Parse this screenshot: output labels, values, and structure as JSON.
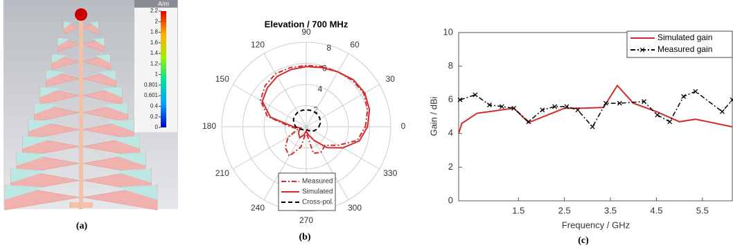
{
  "chart_data": [
    {
      "type": "image",
      "caption": "(a)",
      "colorbar": {
        "title": "A/m",
        "lim": [
          0,
          2.2
        ],
        "ticks": [
          0,
          0.2,
          0.4,
          0.601,
          0.801,
          1,
          1.2,
          1.4,
          1.6,
          1.8,
          2,
          2.2
        ]
      }
    },
    {
      "type": "polar",
      "title": "Elevation / 700 MHz",
      "caption": "(b)",
      "rlim": [
        0,
        8
      ],
      "rticks": [
        2,
        4,
        6,
        8
      ],
      "thetaticks": [
        0,
        30,
        60,
        90,
        120,
        150,
        180,
        210,
        240,
        270,
        300,
        330
      ],
      "x": [
        0,
        15,
        30,
        45,
        60,
        75,
        90,
        105,
        120,
        135,
        150,
        165,
        180,
        195,
        210,
        225,
        240,
        255,
        270,
        285,
        300,
        315,
        330,
        345
      ],
      "series": [
        {
          "name": "Measured",
          "color": "#d42a2a",
          "style": "dashdot",
          "values": [
            5.6,
            6.0,
            6.3,
            6.2,
            6.0,
            5.9,
            5.8,
            5.8,
            5.8,
            5.5,
            5.0,
            3.8,
            1.5,
            0.8,
            2.0,
            2.8,
            3.2,
            2.0,
            0.5,
            2.6,
            2.8,
            2.5,
            3.5,
            5.0
          ]
        },
        {
          "name": "Simulated",
          "color": "#d42a2a",
          "style": "solid",
          "values": [
            5.8,
            6.2,
            6.4,
            6.3,
            6.0,
            5.8,
            5.7,
            5.6,
            5.5,
            5.2,
            4.8,
            3.5,
            1.2,
            0.5,
            0.8,
            1.0,
            1.2,
            0.8,
            0.4,
            0.8,
            1.5,
            2.8,
            4.0,
            5.2
          ]
        },
        {
          "name": "Cross-pol.",
          "color": "#000000",
          "style": "dashed",
          "values": [
            1.2,
            1.4,
            1.5,
            1.6,
            1.6,
            1.6,
            1.6,
            1.6,
            1.6,
            1.5,
            1.4,
            1.2,
            1.0,
            0.7,
            0.5,
            0.4,
            0.3,
            0.3,
            0.3,
            0.3,
            0.4,
            0.6,
            0.8,
            1.0
          ]
        }
      ]
    },
    {
      "type": "line",
      "caption": "(c)",
      "xlabel": "Frequency / GHz",
      "ylabel": "Gain / dBi",
      "xlim": [
        0.2,
        6.15
      ],
      "xticks": [
        1.5,
        2.5,
        3.5,
        4.5,
        5.5
      ],
      "ylim": [
        0,
        10
      ],
      "yticks": [
        0,
        2,
        4,
        6,
        8,
        10
      ],
      "legend": "upper right",
      "series": [
        {
          "name": "Simulated gain",
          "color": "#d42a2a",
          "style": "solid",
          "marker": false,
          "x": [
            0.2,
            0.27,
            0.6,
            1.4,
            1.72,
            2.5,
            2.9,
            3.35,
            3.65,
            4.0,
            4.5,
            5.0,
            5.35,
            6.15
          ],
          "values": [
            4.0,
            4.6,
            5.2,
            5.5,
            4.65,
            5.5,
            5.5,
            5.55,
            6.85,
            5.8,
            5.3,
            4.7,
            4.85,
            4.4
          ]
        },
        {
          "name": "Measured gain",
          "color": "#000000",
          "style": "dashdot",
          "marker": true,
          "x": [
            0.23,
            0.56,
            0.87,
            1.14,
            1.4,
            1.72,
            2.02,
            2.29,
            2.55,
            2.79,
            3.11,
            3.4,
            3.7,
            4.23,
            4.52,
            4.79,
            5.09,
            5.35,
            5.93,
            6.15
          ],
          "values": [
            6.0,
            6.3,
            5.7,
            5.6,
            5.5,
            4.7,
            5.4,
            5.6,
            5.6,
            5.4,
            4.4,
            5.8,
            5.8,
            5.9,
            5.1,
            4.7,
            6.2,
            6.5,
            5.3,
            6.0
          ]
        }
      ]
    }
  ]
}
